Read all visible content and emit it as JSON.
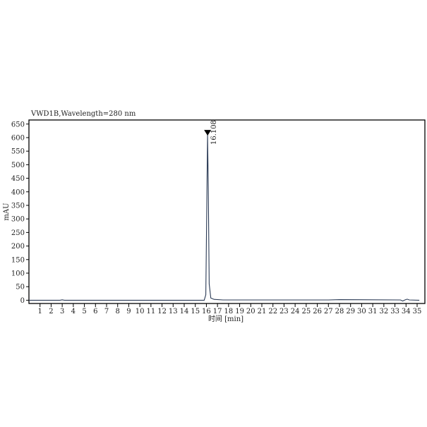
{
  "chart_data": {
    "type": "line",
    "title": "VWD1B,Wavelength=280 nm",
    "xlabel": "时间 [min]",
    "ylabel": "mAU",
    "xlim": [
      0,
      35.7
    ],
    "ylim": [
      -12,
      665
    ],
    "xticks": [
      1,
      2,
      3,
      4,
      5,
      6,
      7,
      8,
      9,
      10,
      11,
      12,
      13,
      14,
      15,
      16,
      17,
      18,
      19,
      20,
      21,
      22,
      23,
      24,
      25,
      26,
      27,
      28,
      29,
      30,
      31,
      32,
      33,
      34,
      35
    ],
    "yticks": [
      0,
      50,
      100,
      150,
      200,
      250,
      300,
      350,
      400,
      450,
      500,
      550,
      600,
      650
    ],
    "grid": false,
    "line_color": "#2a3a55",
    "series": [
      {
        "x": [
          0,
          2.8,
          3.0,
          3.2,
          15.8,
          15.95,
          16.05,
          16.108,
          16.17,
          16.25,
          16.4,
          16.7,
          17.5,
          27,
          28,
          33.5,
          33.7,
          33.9,
          34.1,
          34.3,
          35.2
        ],
        "y": [
          0,
          0,
          1.5,
          0,
          0,
          20,
          400,
          610,
          420,
          60,
          8,
          3,
          1,
          1,
          2,
          1,
          -3,
          1,
          4,
          1,
          0
        ]
      }
    ],
    "annotations": [
      {
        "label": "16.108",
        "x": 16.108,
        "y": 610,
        "marker": "peak-triangle"
      }
    ]
  }
}
